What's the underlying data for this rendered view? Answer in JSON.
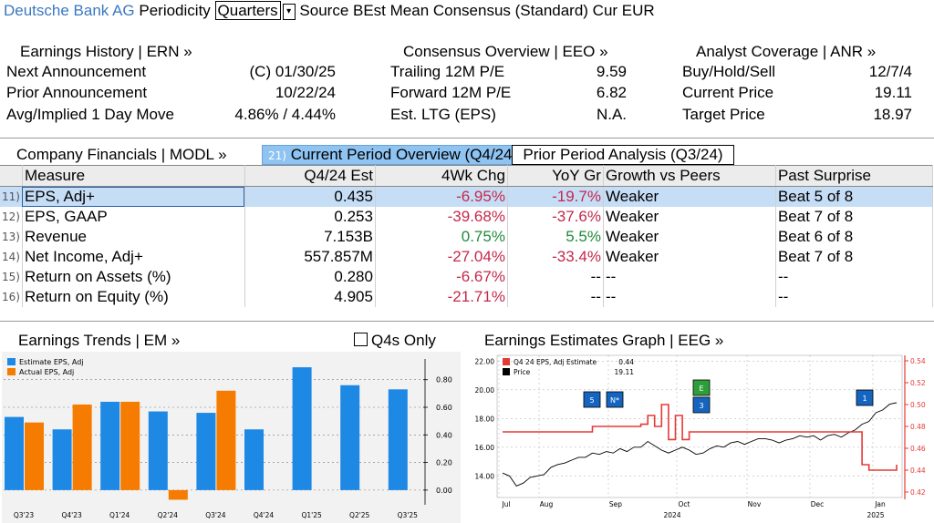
{
  "header": {
    "company": "Deutsche Bank AG",
    "periodicity_label": "Periodicity",
    "periodicity_value": "Quarters",
    "source_text": "Source BEst Mean Consensus (Standard) Cur EUR"
  },
  "earnings_history": {
    "title": "Earnings History | ERN »",
    "rows": [
      {
        "label": "Next Announcement",
        "value": "(C)  01/30/25"
      },
      {
        "label": "Prior Announcement",
        "value": "10/22/24"
      },
      {
        "label": "Avg/Implied 1 Day Move",
        "value": "4.86% / 4.44%"
      }
    ]
  },
  "consensus_overview": {
    "title": "Consensus Overview | EEO »",
    "rows": [
      {
        "label": "Trailing 12M P/E",
        "value": "9.59"
      },
      {
        "label": "Forward 12M P/E",
        "value": "6.82"
      },
      {
        "label": "Est. LTG (EPS)",
        "value": "N.A."
      }
    ]
  },
  "analyst_coverage": {
    "title": "Analyst Coverage | ANR »",
    "rows": [
      {
        "label": "Buy/Hold/Sell",
        "value": "12/7/4"
      },
      {
        "label": "Current Price",
        "value": "19.11"
      },
      {
        "label": "Target Price",
        "value": "18.97"
      }
    ]
  },
  "financials": {
    "title": "Company Financials | MODL »",
    "tab_active_num": "21)",
    "tab_active": "Current Period Overview (Q4/24)",
    "tab_other": "Prior Period Analysis (Q3/24)",
    "columns": [
      "Measure",
      "Q4/24 Est",
      "4Wk Chg",
      "YoY Gr",
      "Growth vs Peers",
      "Past Surprise"
    ],
    "rows": [
      {
        "idx": "11)",
        "measure": "EPS, Adj+",
        "est": "0.435",
        "chg": "-6.95%",
        "yoy": "-19.7%",
        "peers": "Weaker",
        "surprise": "Beat 5 of 8"
      },
      {
        "idx": "12)",
        "measure": "EPS, GAAP",
        "est": "0.253",
        "chg": "-39.68%",
        "yoy": "-37.6%",
        "peers": "Weaker",
        "surprise": "Beat 7 of 8"
      },
      {
        "idx": "13)",
        "measure": "Revenue",
        "est": "7.153B",
        "chg": "0.75%",
        "yoy": "5.5%",
        "peers": "Weaker",
        "surprise": "Beat 6 of 8"
      },
      {
        "idx": "14)",
        "measure": "Net Income, Adj+",
        "est": "557.857M",
        "chg": "-27.04%",
        "yoy": "-33.4%",
        "peers": "Weaker",
        "surprise": "Beat 7 of 8"
      },
      {
        "idx": "15)",
        "measure": "Return on Assets (%)",
        "est": "0.280",
        "chg": "-6.67%",
        "yoy": "--",
        "peers": "--",
        "surprise": "--"
      },
      {
        "idx": "16)",
        "measure": "Return on Equity (%)",
        "est": "4.905",
        "chg": "-21.71%",
        "yoy": "--",
        "peers": "--",
        "surprise": "--"
      }
    ]
  },
  "earnings_trends": {
    "title": "Earnings Trends | EM »",
    "q4s_only_label": "Q4s Only"
  },
  "earnings_graph": {
    "title": "Earnings Estimates Graph | EEG »"
  },
  "chart_data": [
    {
      "type": "bar",
      "categories": [
        "Q3'23",
        "Q4'23",
        "Q1'24",
        "Q2'24",
        "Q3'24",
        "Q4'24",
        "Q1'25",
        "Q2'25",
        "Q3'25"
      ],
      "series": [
        {
          "name": "Estimate EPS, Adj",
          "values": [
            0.53,
            0.44,
            0.64,
            0.57,
            0.56,
            0.44,
            0.89,
            0.76,
            0.73
          ]
        },
        {
          "name": "Actual EPS, Adj",
          "values": [
            0.49,
            0.62,
            0.64,
            -0.07,
            0.72,
            null,
            null,
            null,
            null
          ]
        }
      ],
      "yticks": [
        "0.00",
        "0.20",
        "0.40",
        "0.60",
        "0.80"
      ],
      "ylim": [
        -0.08,
        0.95
      ],
      "colors": {
        "estimate": "#1e88e5",
        "actual": "#f57c00"
      }
    },
    {
      "type": "line",
      "x_labels": [
        "Jul",
        "Aug",
        "Sep",
        "Oct",
        "Nov",
        "Dec",
        "Jan"
      ],
      "year_labels": [
        "2024",
        "2025"
      ],
      "series": [
        {
          "name": "Q4 24 EPS, Adj Estimate",
          "last": "0.44",
          "axis": "right",
          "values": [
            0.475,
            0.475,
            0.475,
            0.475,
            0.475,
            0.475,
            0.475,
            0.475,
            0.475,
            0.475,
            0.475,
            0.475,
            0.475,
            0.48,
            0.48,
            0.48,
            0.48,
            0.48,
            0.48,
            0.48,
            0.482,
            0.49,
            0.48,
            0.5,
            0.468,
            0.49,
            0.468,
            0.475,
            0.475,
            0.475,
            0.475,
            0.475,
            0.475,
            0.475,
            0.475,
            0.475,
            0.475,
            0.475,
            0.475,
            0.475,
            0.475,
            0.475,
            0.475,
            0.475,
            0.475,
            0.475,
            0.475,
            0.475,
            0.475,
            0.475,
            0.475,
            0.475,
            0.445,
            0.44,
            0.44,
            0.44,
            0.44,
            0.445
          ]
        },
        {
          "name": "Price",
          "last": "19.11",
          "axis": "left",
          "values": [
            14.2,
            14.0,
            13.3,
            13.5,
            13.9,
            14.0,
            14.1,
            14.6,
            14.8,
            14.9,
            15.1,
            15.3,
            15.3,
            15.6,
            15.5,
            15.7,
            15.6,
            15.9,
            15.7,
            16.0,
            16.0,
            16.4,
            16.1,
            15.8,
            15.6,
            15.8,
            16.0,
            15.8,
            15.5,
            15.6,
            15.9,
            16.1,
            16.0,
            16.3,
            16.4,
            16.2,
            16.4,
            16.6,
            16.6,
            16.5,
            16.3,
            16.5,
            16.6,
            16.8,
            16.7,
            16.8,
            16.5,
            16.8,
            16.9,
            16.7,
            17.0,
            17.2,
            17.6,
            17.8,
            18.4,
            18.6,
            19.0,
            19.1
          ]
        }
      ],
      "left_ticks": [
        "14.00",
        "16.00",
        "18.00",
        "20.00",
        "22.00"
      ],
      "right_ticks": [
        "0.42",
        "0.44",
        "0.46",
        "0.48",
        "0.50",
        "0.52",
        "0.54"
      ],
      "left_ylim": [
        12.5,
        22.4
      ],
      "right_ylim": [
        0.415,
        0.545
      ],
      "event_markers": [
        "5",
        "N*",
        "E",
        "3",
        "1"
      ],
      "colors": {
        "estimate": "#e53935",
        "price": "#000000",
        "axis_right": "#e53935"
      }
    }
  ]
}
